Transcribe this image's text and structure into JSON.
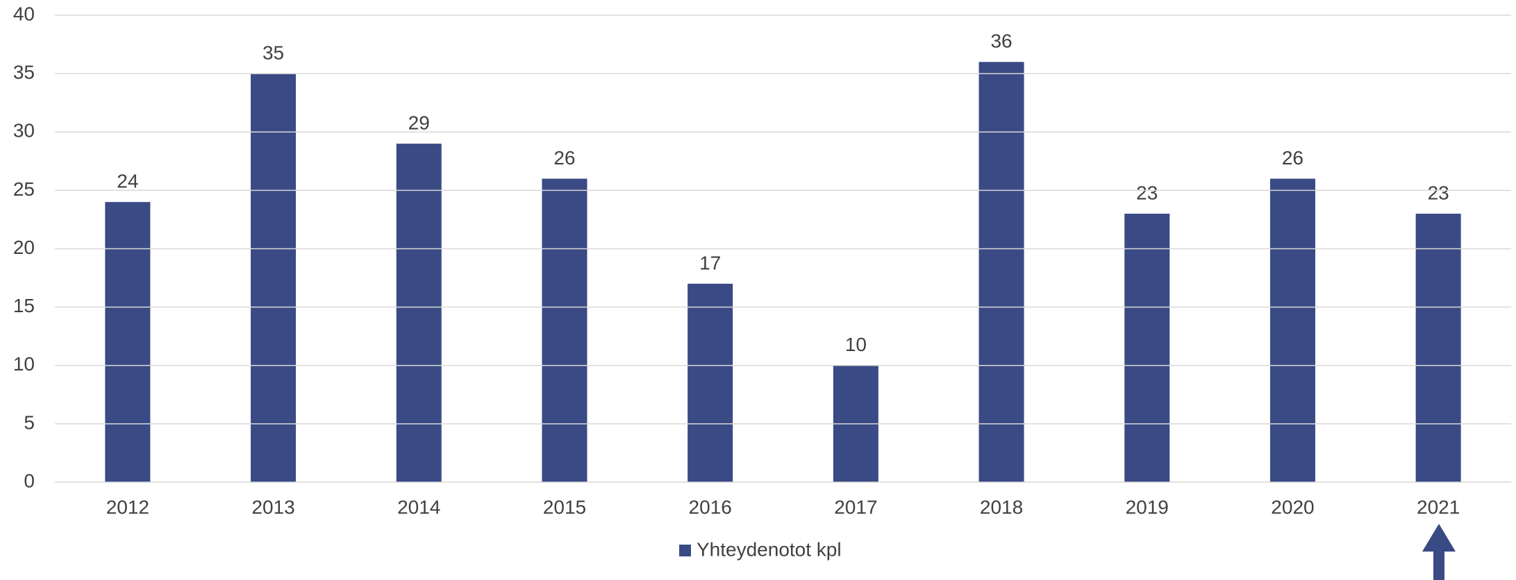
{
  "chart_data": {
    "type": "bar",
    "categories": [
      "2012",
      "2013",
      "2014",
      "2015",
      "2016",
      "2017",
      "2018",
      "2019",
      "2020",
      "2021"
    ],
    "series": [
      {
        "name": "Yhteydenotot kpl",
        "color": "#3a4a84",
        "values": [
          24,
          35,
          29,
          26,
          17,
          10,
          36,
          23,
          26,
          23
        ]
      }
    ],
    "ylim": [
      0,
      40
    ],
    "yticks": [
      0,
      5,
      10,
      15,
      20,
      25,
      30,
      35,
      40
    ],
    "grid": true,
    "legend": "bottom",
    "data_labels": true
  }
}
